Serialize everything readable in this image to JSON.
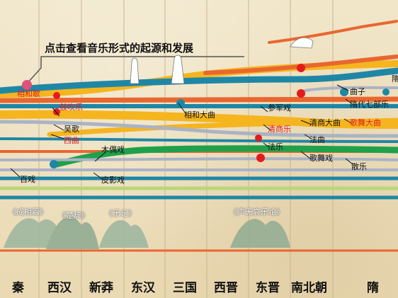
{
  "headline": "点击查看音乐形式的起源和发展",
  "eras": [
    "秦",
    "西汉",
    "新莽",
    "东汉",
    "三国",
    "西晋",
    "东晋",
    "南北朝",
    "隋"
  ],
  "labels": {
    "xianghege": "相和歌",
    "guchuiyue": "鼓吹乐",
    "wuge": "吴歌",
    "xiqu": "西曲",
    "muouxi": "木偶戏",
    "baixi": "百戏",
    "piyingxi": "皮影戏",
    "xianghedaqu": "相和大曲",
    "canjunxi": "参军戏",
    "qingshangyue": "清商乐",
    "fayue": "法乐",
    "faqu": "法曲",
    "qingshangdaqu": "清商大曲",
    "gewuxi": "歌舞戏",
    "quzi": "曲子",
    "suiqibuyue": "隋代七部乐",
    "gewudaqu": "歌舞大曲",
    "sanyue": "散乐",
    "sui_cut": "隋"
  },
  "books": [
    "《成相篇》",
    "《楚辞》",
    "《乐记》",
    "《声无哀乐论》"
  ],
  "colors": {
    "teal": "#1f87a6",
    "orange": "#e8672f",
    "yellow": "#f5b51f",
    "green": "#1fa14c",
    "gray": "#aab3c6",
    "lightgreen": "#b9d77a",
    "red": "#e41b1b",
    "pink": "#e0507a"
  }
}
